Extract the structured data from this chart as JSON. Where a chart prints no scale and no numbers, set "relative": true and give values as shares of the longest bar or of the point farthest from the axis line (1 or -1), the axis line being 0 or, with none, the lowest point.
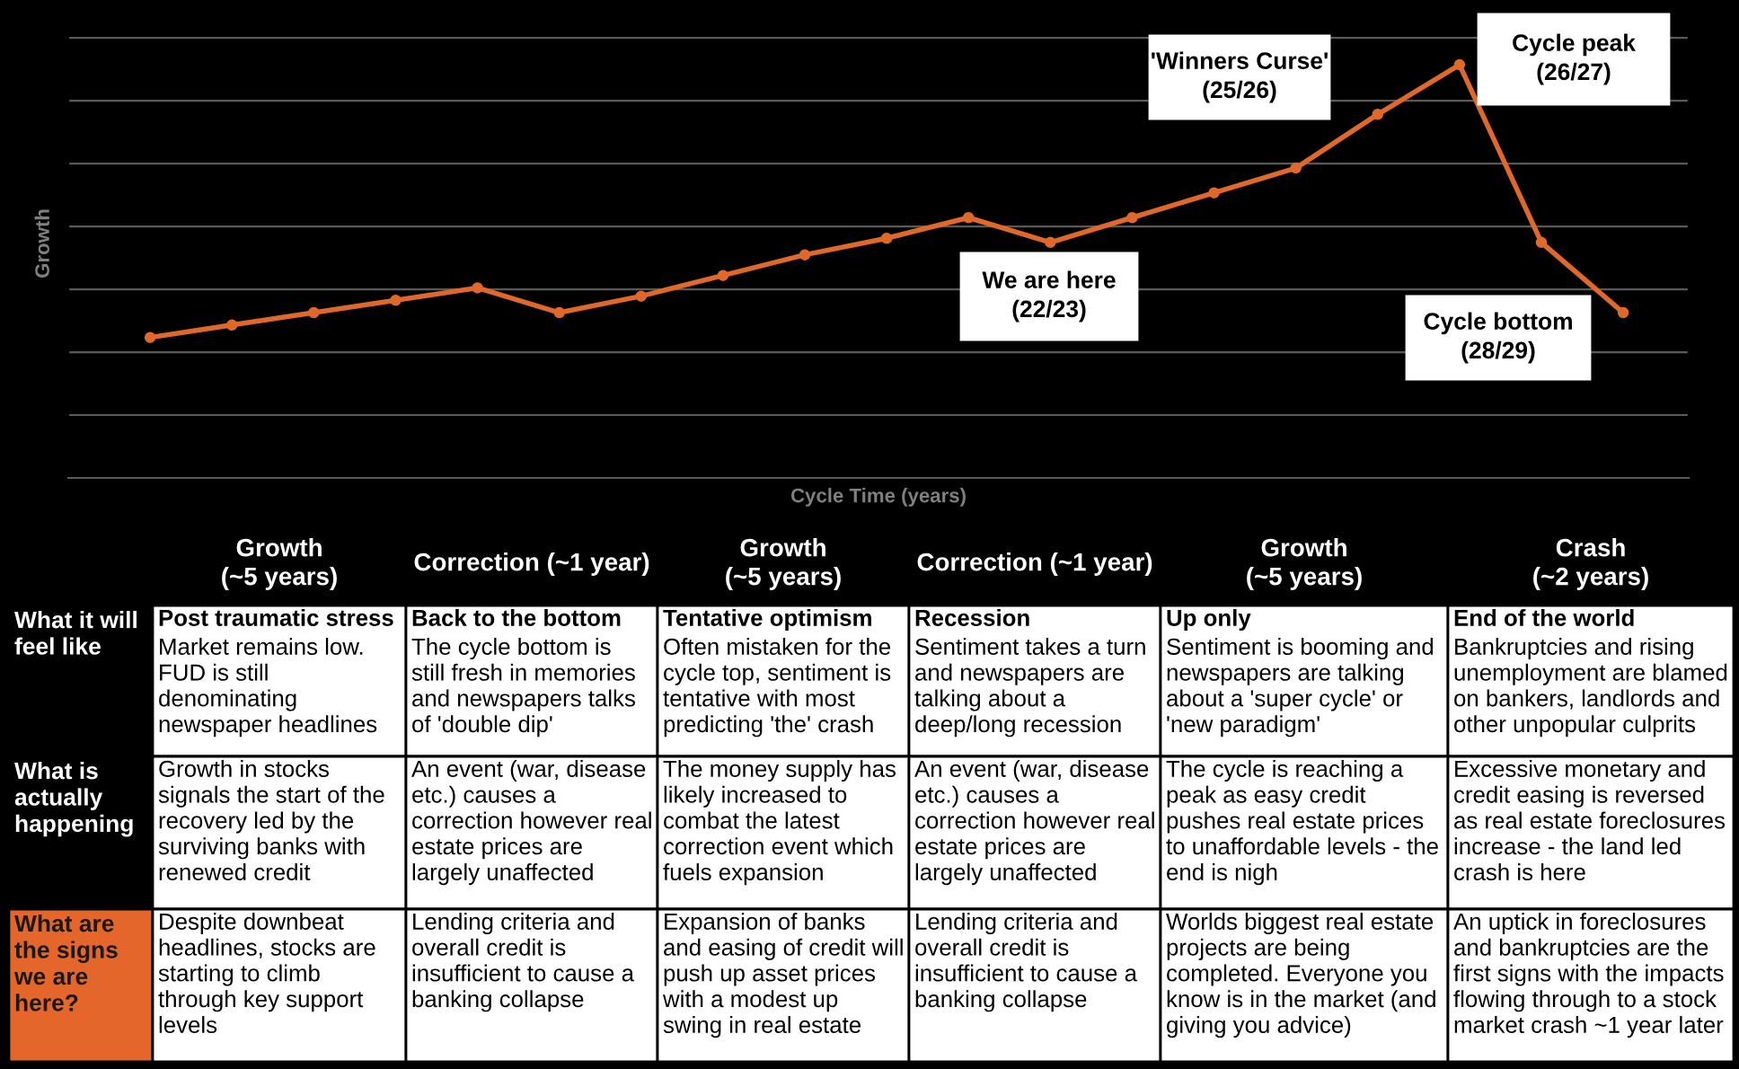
{
  "chart_data": {
    "type": "line",
    "relative": true,
    "xlabel": "Cycle Time (years)",
    "ylabel": "Growth",
    "categories": [
      null,
      null,
      null,
      null,
      null,
      null,
      null,
      null,
      null,
      null,
      null,
      null,
      null,
      null,
      null,
      null,
      null,
      null,
      null
    ],
    "series": [
      {
        "color": "#e0682b",
        "values": [
          0.34,
          0.37,
          0.4,
          0.43,
          0.46,
          0.4,
          0.44,
          0.49,
          0.54,
          0.58,
          0.63,
          0.57,
          0.63,
          0.69,
          0.75,
          0.88,
          1,
          0.57,
          0.4
        ]
      }
    ],
    "marker": "circle",
    "line_style": "solid",
    "grid": "y",
    "legend": false,
    "annotations": [
      "'Winners Curse'\n(25/26)",
      "Cycle peak\n(26/27)",
      "We are here\n(22/23)",
      "Cycle bottom\n(28/29)",
      "Growth\n(~5 years)",
      "Correction (~1 year)",
      "Growth\n(~5 years)",
      "Correction (~1 year)",
      "Growth\n(~5 years)",
      "Crash\n(~2 years)",
      "What it will\nfeel like",
      "What is\nactually\nhappening",
      "What are\nthe signs\nwe are\nhere?",
      "Post traumatic stress\nMarket remains low.\nFUD is still\ndenominating\nnewspaper headlines",
      "Back to the bottom\nThe cycle bottom is\nstill fresh in memories\nand newspapers talks\nof 'double dip'",
      "Tentative optimism\nOften mistaken for the\ncycle top, sentiment is\ntentative with most\npredicting 'the' crash",
      "Recession\nSentiment takes a turn\nand newspapers are\ntalking about a\ndeep/long recession",
      "Up only\nSentiment is booming and\nnewspapers are talking\nabout a 'super cycle' or\n'new paradigm'",
      "End of the world\nBankruptcies and rising\nunemployment are blamed\non bankers, landlords and\nother unpopular culprits",
      "Growth in stocks\nsignals the start of the\nrecovery led by the\nsurviving banks with\nrenewed credit",
      "An event (war, disease\netc.) causes a\ncorrection however real\nestate prices are\nlargely unaffected",
      "The money supply has\nlikely increased to\ncombat the latest\ncorrection event which\nfuels expansion",
      "An event (war, disease\netc.) causes a\ncorrection however real\nestate prices are\nlargely unaffected",
      "The cycle is reaching a\npeak as easy credit\npushes real estate prices\nto unaffordable levels - the\nend is nigh",
      "Excessive monetary and\ncredit easing is reversed\nas real estate foreclosures\nincrease - the land led\ncrash is here",
      "Despite downbeat\nheadlines, stocks are\nstarting to climb\nthrough key support\nlevels",
      "Lending criteria and\noverall credit is\ninsufficient to cause a\nbanking collapse",
      "Expansion of banks\nand easing of credit will\npush up asset prices\nwith a modest up\nswing in real estate",
      "Lending criteria and\noverall credit is\ninsufficient to cause a\nbanking collapse",
      "Worlds biggest real estate\nprojects are being\ncompleted. Everyone you\nknow is in the market (and\ngiving you advice)",
      "An uptick in foreclosures\nand bankruptcies are the\nfirst signs with the impacts\nflowing through to a stock\nmarket crash ~1 year later"
    ]
  }
}
